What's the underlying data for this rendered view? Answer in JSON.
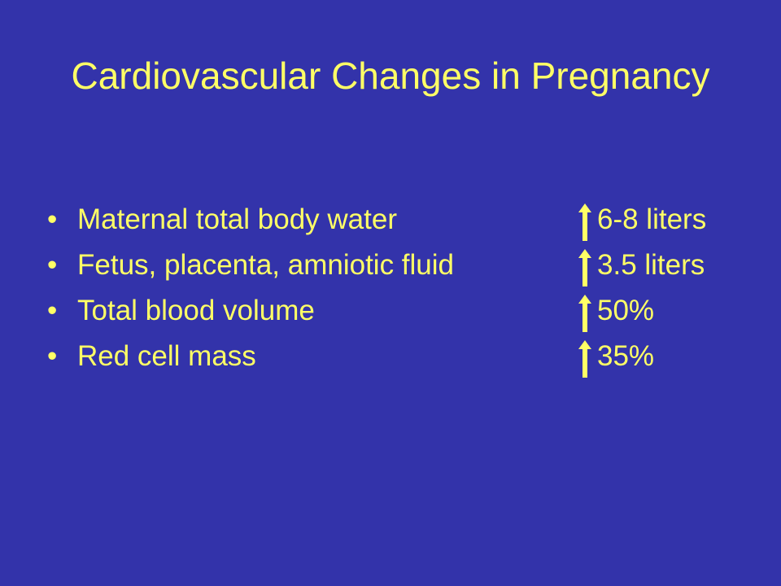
{
  "slide": {
    "title": "Cardiovascular Changes in Pregnancy",
    "background_color": "#3333AA",
    "text_color": "#FFFF66",
    "bullet_glyph": "•",
    "items": [
      {
        "label": "Maternal total body water",
        "indicator": "up-arrow-icon",
        "value": "6-8 liters"
      },
      {
        "label": "Fetus, placenta, amniotic fluid",
        "indicator": "up-arrow-icon",
        "value": "3.5 liters"
      },
      {
        "label": "Total blood volume",
        "indicator": "up-arrow-icon",
        "value": "50%"
      },
      {
        "label": "Red cell mass",
        "indicator": "up-arrow-icon",
        "value": "35%"
      }
    ]
  }
}
